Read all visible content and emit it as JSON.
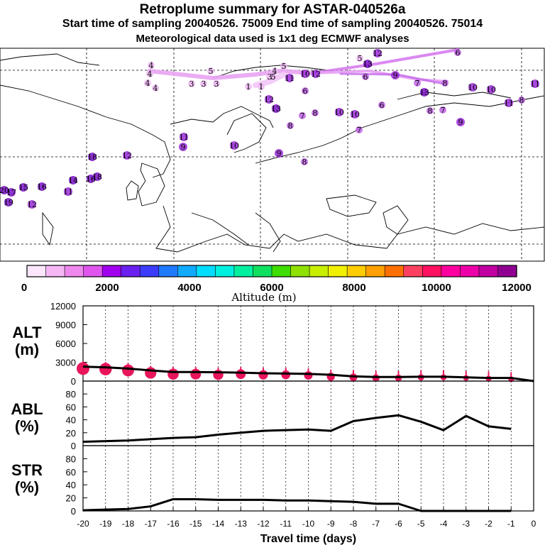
{
  "header": {
    "title": "Retroplume summary for ASTAR-040526a",
    "sampling": "Start time of sampling 20040526. 75009     End time of sampling 20040526. 75014",
    "meteo": "Meteorological data used is 1x1 deg ECMWF analyses"
  },
  "colorbar": {
    "title": "Altitude (m)",
    "tick_labels": [
      "0",
      "2000",
      "4000",
      "6000",
      "8000",
      "10000",
      "12000"
    ],
    "colors": [
      "#fbe6fb",
      "#f5b8f5",
      "#ee88ee",
      "#e055ee",
      "#a000ee",
      "#6a20ee",
      "#3c3cff",
      "#1f7aff",
      "#10aaff",
      "#00ddff",
      "#00f0e0",
      "#00f0a0",
      "#10e060",
      "#40dd00",
      "#90e000",
      "#c8ee00",
      "#f0f000",
      "#ffcc00",
      "#ffa000",
      "#ff7000",
      "#ff4060",
      "#ff1060",
      "#ff00a0",
      "#ee00a8",
      "#c000a0",
      "#900090"
    ]
  },
  "map": {
    "trajectory_labels": [
      {
        "t": "4",
        "x": 213,
        "y": 92
      },
      {
        "t": "4",
        "x": 211,
        "y": 104
      },
      {
        "t": "4",
        "x": 208,
        "y": 117
      },
      {
        "t": "4",
        "x": 219,
        "y": 124
      },
      {
        "t": "5",
        "x": 297,
        "y": 100
      },
      {
        "t": "3",
        "x": 270,
        "y": 118
      },
      {
        "t": "3",
        "x": 287,
        "y": 118
      },
      {
        "t": "3",
        "x": 305,
        "y": 118
      },
      {
        "t": "5",
        "x": 400,
        "y": 93
      },
      {
        "t": "4",
        "x": 387,
        "y": 100
      },
      {
        "t": "5",
        "x": 385,
        "y": 108
      },
      {
        "t": "11",
        "x": 408,
        "y": 110
      },
      {
        "t": "10",
        "x": 430,
        "y": 104
      },
      {
        "t": "12",
        "x": 445,
        "y": 104
      },
      {
        "t": "3",
        "x": 380,
        "y": 108
      },
      {
        "t": "1",
        "x": 350,
        "y": 122
      },
      {
        "t": "1",
        "x": 368,
        "y": 122
      },
      {
        "t": "6",
        "x": 430,
        "y": 128
      },
      {
        "t": "5",
        "x": 507,
        "y": 82
      },
      {
        "t": "13",
        "x": 518,
        "y": 90
      },
      {
        "t": "12",
        "x": 532,
        "y": 75
      },
      {
        "t": "6",
        "x": 645,
        "y": 74
      },
      {
        "t": "6",
        "x": 515,
        "y": 108
      },
      {
        "t": "9",
        "x": 557,
        "y": 106
      },
      {
        "t": "7",
        "x": 588,
        "y": 117
      },
      {
        "t": "8",
        "x": 627,
        "y": 117
      },
      {
        "t": "13",
        "x": 598,
        "y": 130
      },
      {
        "t": "10",
        "x": 666,
        "y": 123
      },
      {
        "t": "10",
        "x": 692,
        "y": 126
      },
      {
        "t": "11",
        "x": 754,
        "y": 118
      },
      {
        "t": "8",
        "x": 735,
        "y": 141
      },
      {
        "t": "11",
        "x": 717,
        "y": 145
      },
      {
        "t": "6",
        "x": 538,
        "y": 148
      },
      {
        "t": "7",
        "x": 624,
        "y": 155
      },
      {
        "t": "8",
        "x": 606,
        "y": 156
      },
      {
        "t": "9",
        "x": 649,
        "y": 172
      },
      {
        "t": "12",
        "x": 379,
        "y": 140
      },
      {
        "t": "13",
        "x": 389,
        "y": 153
      },
      {
        "t": "7",
        "x": 426,
        "y": 163
      },
      {
        "t": "8",
        "x": 444,
        "y": 159
      },
      {
        "t": "10",
        "x": 478,
        "y": 158
      },
      {
        "t": "10",
        "x": 500,
        "y": 161
      },
      {
        "t": "7",
        "x": 506,
        "y": 183
      },
      {
        "t": "8",
        "x": 409,
        "y": 177
      },
      {
        "t": "11",
        "x": 259,
        "y": 193
      },
      {
        "t": "9",
        "x": 258,
        "y": 207
      },
      {
        "t": "10",
        "x": 330,
        "y": 205
      },
      {
        "t": "9",
        "x": 393,
        "y": 216
      },
      {
        "t": "8",
        "x": 429,
        "y": 228
      },
      {
        "t": "18",
        "x": 130,
        "y": 221
      },
      {
        "t": "12",
        "x": 179,
        "y": 219
      },
      {
        "t": "14",
        "x": 103,
        "y": 254
      },
      {
        "t": "16",
        "x": 128,
        "y": 252
      },
      {
        "t": "18",
        "x": 137,
        "y": 249
      },
      {
        "t": "16",
        "x": 59,
        "y": 263
      },
      {
        "t": "15",
        "x": 33,
        "y": 264
      },
      {
        "t": "11",
        "x": 96,
        "y": 270
      },
      {
        "t": "20",
        "x": 6,
        "y": 268
      },
      {
        "t": "17",
        "x": 16,
        "y": 271
      },
      {
        "t": "19",
        "x": 12,
        "y": 285
      },
      {
        "t": "12",
        "x": 45,
        "y": 288
      }
    ]
  },
  "chart_data": [
    {
      "type": "line",
      "panel_label": "ALT\n(m)",
      "panel_label_lines": [
        "ALT",
        "(m)"
      ],
      "title": "",
      "xlabel": "Travel time (days)",
      "ylabel": "ALT (m)",
      "x": [
        -20,
        -19,
        -18,
        -17,
        -16,
        -15,
        -14,
        -13,
        -12,
        -11,
        -10,
        -9,
        -8,
        -7,
        -6,
        -5,
        -4,
        -3,
        -2,
        -1,
        0
      ],
      "values": [
        2300,
        2200,
        2000,
        1700,
        1450,
        1450,
        1400,
        1350,
        1250,
        1200,
        1150,
        1000,
        750,
        650,
        650,
        700,
        700,
        600,
        500,
        500,
        0
      ],
      "ylim": [
        0,
        12000
      ],
      "yticks": [
        0,
        3000,
        6000,
        9000,
        12000
      ],
      "ytick_labels": [
        "0",
        "3000",
        "6000",
        "9000",
        "12000"
      ],
      "markers": {
        "x": [
          -20,
          -19,
          -18,
          -17,
          -16,
          -15,
          -14,
          -13,
          -12,
          -11,
          -10,
          -9,
          -8,
          -7,
          -6,
          -5,
          -4,
          -3,
          -2,
          -1
        ],
        "values": [
          2000,
          1900,
          1700,
          1300,
          1100,
          1100,
          1000,
          1100,
          1000,
          1000,
          900,
          700,
          600,
          500,
          500,
          600,
          600,
          500,
          400,
          300
        ],
        "color": "#e8155a"
      }
    },
    {
      "type": "line",
      "panel_label_lines": [
        "ABL",
        "(%)"
      ],
      "title": "",
      "xlabel": "Travel time (days)",
      "ylabel": "ABL (%)",
      "x": [
        -20,
        -19,
        -18,
        -17,
        -16,
        -15,
        -14,
        -13,
        -12,
        -11,
        -10,
        -9,
        -8,
        -7,
        -6,
        -5,
        -4,
        -3,
        -2,
        -1
      ],
      "values": [
        6,
        7,
        8,
        10,
        12,
        13,
        17,
        20,
        23,
        24,
        25,
        23,
        38,
        43,
        47,
        37,
        24,
        46,
        30,
        26
      ],
      "ylim": [
        0,
        100
      ],
      "yticks": [
        0,
        20,
        40,
        60,
        80
      ],
      "ytick_labels": [
        "0",
        "20",
        "40",
        "60",
        "80"
      ]
    },
    {
      "type": "line",
      "panel_label_lines": [
        "STR",
        "(%)"
      ],
      "title": "",
      "xlabel": "Travel time (days)",
      "ylabel": "STR (%)",
      "x": [
        -20,
        -19,
        -18,
        -17,
        -16,
        -15,
        -14,
        -13,
        -12,
        -11,
        -10,
        -9,
        -8,
        -7,
        -6,
        -5,
        -4,
        -3,
        -2,
        -1
      ],
      "values": [
        1,
        2,
        3,
        7,
        18,
        18,
        17,
        17,
        17,
        16,
        16,
        15,
        14,
        11,
        11,
        0,
        0,
        0,
        0,
        0
      ],
      "ylim": [
        0,
        100
      ],
      "yticks": [
        0,
        20,
        40,
        60,
        80
      ],
      "ytick_labels": [
        "0",
        "20",
        "40",
        "60",
        "80"
      ],
      "xticks": [
        -20,
        -19,
        -18,
        -17,
        -16,
        -15,
        -14,
        -13,
        -12,
        -11,
        -10,
        -9,
        -8,
        -7,
        -6,
        -5,
        -4,
        -3,
        -2,
        -1,
        0
      ],
      "xtick_labels": [
        "-20",
        "-19",
        "-18",
        "-17",
        "-16",
        "-15",
        "-14",
        "-13",
        "-12",
        "-11",
        "-10",
        "-9",
        "-8",
        "-7",
        "-6",
        "-5",
        "-4",
        "-3",
        "-2",
        "-1",
        "0"
      ]
    }
  ]
}
